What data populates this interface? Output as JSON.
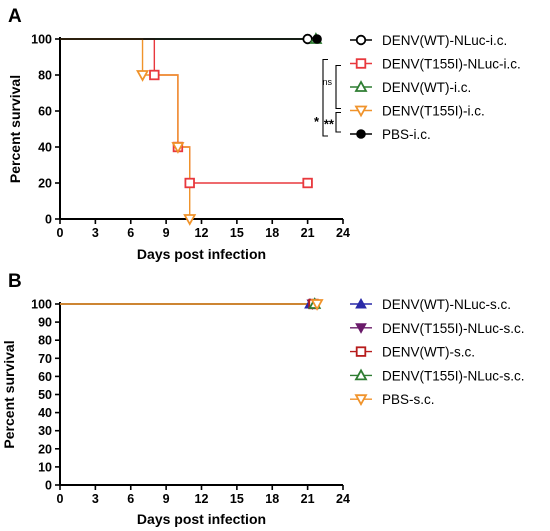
{
  "chart_data": [
    {
      "panel": "A",
      "type": "line",
      "step": true,
      "xlabel": "Days post infection",
      "ylabel": "Percent survival",
      "xlim": [
        0,
        24
      ],
      "ylim": [
        0,
        100
      ],
      "xticks": [
        "0",
        "3",
        "6",
        "9",
        "12",
        "15",
        "18",
        "21",
        "24"
      ],
      "yticks": [
        "0",
        "20",
        "40",
        "60",
        "80",
        "100"
      ],
      "grid": false,
      "legend_position": "right",
      "series": [
        {
          "name": "DENV(WT)-NLuc-i.c.",
          "color": "#000000",
          "marker": "circle-open",
          "x": [
            0,
            21
          ],
          "y": [
            100,
            100
          ],
          "markers_x": [
            21
          ],
          "markers_y": [
            100
          ]
        },
        {
          "name": "DENV(T155I)-NLuc-i.c.",
          "color": "#e8383d",
          "marker": "square-open",
          "x": [
            0,
            8,
            10,
            11,
            21
          ],
          "y": [
            100,
            80,
            40,
            20,
            20
          ],
          "markers_x": [
            8,
            10,
            11,
            21
          ],
          "markers_y": [
            80,
            40,
            20,
            20
          ]
        },
        {
          "name": "DENV(WT)-i.c.",
          "color": "#2e7d32",
          "marker": "triangle-up-open",
          "x": [
            0,
            21.7
          ],
          "y": [
            100,
            100
          ],
          "markers_x": [
            21.7
          ],
          "markers_y": [
            100
          ]
        },
        {
          "name": "DENV(T155I)-i.c.",
          "color": "#f0932b",
          "marker": "triangle-down-open",
          "x": [
            0,
            7,
            10,
            11
          ],
          "y": [
            100,
            80,
            40,
            0
          ],
          "markers_x": [
            7,
            10,
            11
          ],
          "markers_y": [
            80,
            40,
            0
          ]
        },
        {
          "name": "PBS-i.c.",
          "color": "#000000",
          "marker": "circle-filled",
          "x": [
            0,
            21.8
          ],
          "y": [
            100,
            100
          ],
          "markers_x": [
            21.8
          ],
          "markers_y": [
            100
          ]
        }
      ],
      "significance": [
        {
          "label": "ns",
          "between": [
            1,
            3
          ]
        },
        {
          "label": "*",
          "between": [
            1,
            4
          ]
        },
        {
          "label": "**",
          "between": [
            3,
            4
          ]
        }
      ]
    },
    {
      "panel": "B",
      "type": "line",
      "step": true,
      "xlabel": "Days post infection",
      "ylabel": "Percent survival",
      "xlim": [
        0,
        24
      ],
      "ylim": [
        0,
        100
      ],
      "xticks": [
        "0",
        "3",
        "6",
        "9",
        "12",
        "15",
        "18",
        "21",
        "24"
      ],
      "yticks": [
        "0",
        "10",
        "20",
        "30",
        "40",
        "50",
        "60",
        "70",
        "80",
        "90",
        "100"
      ],
      "grid": false,
      "legend_position": "right",
      "series": [
        {
          "name": "DENV(WT)-NLuc-s.c.",
          "color": "#2a2aa8",
          "marker": "triangle-up-filled",
          "x": [
            0,
            21.2
          ],
          "y": [
            100,
            100
          ],
          "markers_x": [
            21.2
          ],
          "markers_y": [
            100
          ]
        },
        {
          "name": "DENV(T155I)-NLuc-s.c.",
          "color": "#6a1b6a",
          "marker": "triangle-down-filled",
          "x": [
            0,
            21.4
          ],
          "y": [
            100,
            100
          ],
          "markers_x": [
            21.4
          ],
          "markers_y": [
            100
          ]
        },
        {
          "name": "DENV(WT)-s.c.",
          "color": "#b71c1c",
          "marker": "square-open",
          "x": [
            0,
            21.5
          ],
          "y": [
            100,
            100
          ],
          "markers_x": [
            21.5
          ],
          "markers_y": [
            100
          ]
        },
        {
          "name": "DENV(T155I)-NLuc-s.c.",
          "color": "#2e7d32",
          "marker": "triangle-up-open",
          "x": [
            0,
            21.6
          ],
          "y": [
            100,
            100
          ],
          "markers_x": [
            21.6
          ],
          "markers_y": [
            100
          ]
        },
        {
          "name": "PBS-s.c.",
          "color": "#f0932b",
          "marker": "triangle-down-open",
          "x": [
            0,
            21.8
          ],
          "y": [
            100,
            100
          ],
          "markers_x": [
            21.8
          ],
          "markers_y": [
            100
          ]
        }
      ]
    }
  ]
}
